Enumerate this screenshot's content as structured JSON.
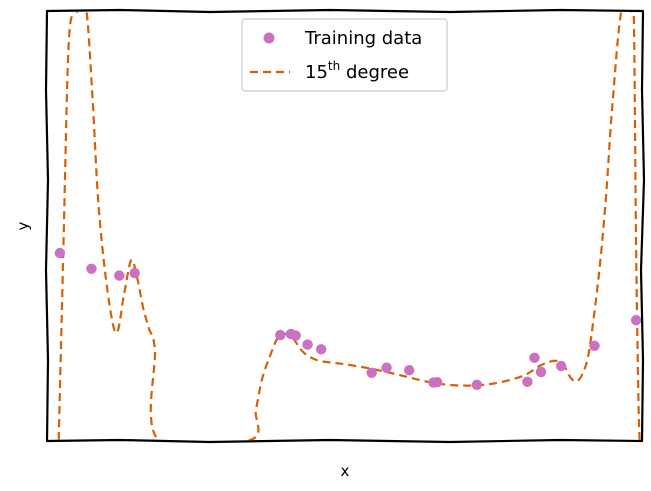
{
  "chart_data": {
    "type": "scatter",
    "xlabel": "x",
    "ylabel": "y",
    "xlim": [
      0,
      1
    ],
    "ylim": [
      0,
      1
    ],
    "grid": false,
    "ticks": "none",
    "legend_placement": "upper-center",
    "legend": {
      "scatter_label": "Training data",
      "line_label_main": "15",
      "line_label_sup": "th",
      "line_label_rest": " degree"
    },
    "colors": {
      "points": "#cc70c2",
      "line": "#d95f02",
      "axes": "#000000"
    },
    "series": [
      {
        "name": "Training data",
        "kind": "scatter",
        "x": [
          0.02,
          0.073,
          0.12,
          0.146,
          0.391,
          0.409,
          0.417,
          0.437,
          0.46,
          0.545,
          0.57,
          0.608,
          0.649,
          0.655,
          0.722,
          0.807,
          0.819,
          0.83,
          0.864,
          0.92,
          0.99
        ],
        "y": [
          0.437,
          0.4,
          0.384,
          0.39,
          0.245,
          0.248,
          0.244,
          0.223,
          0.212,
          0.157,
          0.169,
          0.163,
          0.134,
          0.135,
          0.129,
          0.136,
          0.192,
          0.159,
          0.173,
          0.22,
          0.28
        ]
      },
      {
        "name": "15th degree",
        "kind": "line",
        "x": [
          0.018,
          0.026,
          0.034,
          0.042,
          0.05,
          0.056,
          0.065,
          0.075,
          0.085,
          0.1,
          0.115,
          0.128,
          0.14,
          0.15,
          0.16,
          0.17,
          0.18,
          0.186,
          0.34,
          0.35,
          0.36,
          0.372,
          0.39,
          0.41,
          0.43,
          0.45,
          0.47,
          0.5,
          0.55,
          0.6,
          0.65,
          0.7,
          0.75,
          0.8,
          0.83,
          0.855,
          0.87,
          0.88,
          0.89,
          0.9,
          0.91,
          0.92,
          0.93,
          0.94,
          0.95,
          0.965,
          0.98,
          0.986,
          0.99,
          0.994,
          0.996
        ],
        "y": [
          0.0,
          0.45,
          0.9,
          1.0,
          1.0,
          1.0,
          1.0,
          0.8,
          0.55,
          0.35,
          0.25,
          0.34,
          0.42,
          0.38,
          0.31,
          0.26,
          0.21,
          0.0,
          0.0,
          0.07,
          0.14,
          0.19,
          0.245,
          0.24,
          0.205,
          0.188,
          0.182,
          0.177,
          0.165,
          0.149,
          0.133,
          0.127,
          0.132,
          0.15,
          0.175,
          0.185,
          0.17,
          0.145,
          0.137,
          0.155,
          0.2,
          0.3,
          0.42,
          0.58,
          0.78,
          1.0,
          1.0,
          1.0,
          0.45,
          0.1,
          0.0
        ]
      }
    ]
  }
}
